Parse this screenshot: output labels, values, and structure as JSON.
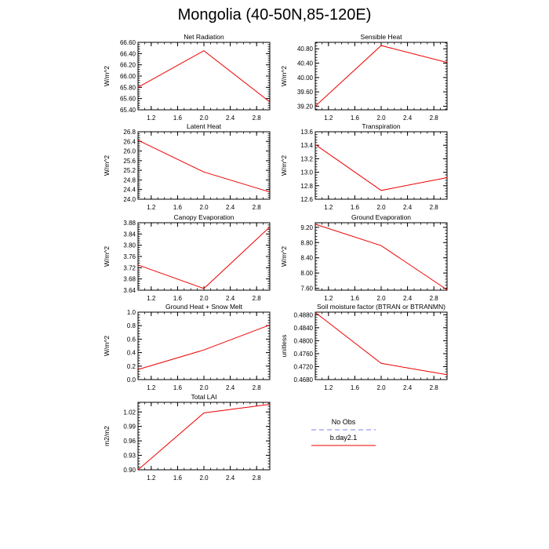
{
  "title": "Mongolia (40-50N,85-120E)",
  "colors": {
    "obs": "#9999ee",
    "model": "#ee0000",
    "axis": "#000000"
  },
  "legend": {
    "items": [
      {
        "label": "No Obs",
        "style": "dashed",
        "color": "#9999ee"
      },
      {
        "label": "b.day2.1",
        "style": "solid",
        "color": "#ee0000"
      }
    ]
  },
  "chart_data": [
    {
      "type": "line",
      "title": "Net Radiation",
      "ylabel": "W/m^2",
      "xlim": [
        1,
        3
      ],
      "xticks": [
        1.2,
        1.6,
        2.0,
        2.4,
        2.8
      ],
      "xtick_labels": [
        "1.2",
        "1.6",
        "2.0",
        "2.4",
        "2.8"
      ],
      "ylim": [
        65.4,
        66.6
      ],
      "yticks": [
        65.4,
        65.6,
        65.8,
        66.0,
        66.2,
        66.4,
        66.6
      ],
      "ytick_labels": [
        "65.40",
        "65.60",
        "65.80",
        "66.00",
        "66.20",
        "66.40",
        "66.60"
      ],
      "series": [
        {
          "name": "b.day2.1",
          "x": [
            1,
            2,
            3
          ],
          "values": [
            65.8,
            66.45,
            65.54
          ]
        }
      ]
    },
    {
      "type": "line",
      "title": "Sensible Heat",
      "ylabel": "W/m^2",
      "xlim": [
        1,
        3
      ],
      "xticks": [
        1.2,
        1.6,
        2.0,
        2.4,
        2.8
      ],
      "xtick_labels": [
        "1.2",
        "1.6",
        "2.0",
        "2.4",
        "2.8"
      ],
      "ylim": [
        39.1,
        40.98
      ],
      "yticks": [
        39.2,
        39.6,
        40.0,
        40.4,
        40.8
      ],
      "ytick_labels": [
        "39.20",
        "39.60",
        "40.00",
        "40.40",
        "40.80"
      ],
      "series": [
        {
          "name": "b.day2.1",
          "x": [
            1,
            2,
            3
          ],
          "values": [
            39.2,
            40.89,
            40.42
          ]
        }
      ]
    },
    {
      "type": "line",
      "title": "Latent Heat",
      "ylabel": "W/m^2",
      "xlim": [
        1,
        3
      ],
      "xticks": [
        1.2,
        1.6,
        2.0,
        2.4,
        2.8
      ],
      "xtick_labels": [
        "1.2",
        "1.6",
        "2.0",
        "2.4",
        "2.8"
      ],
      "ylim": [
        24.0,
        26.8
      ],
      "yticks": [
        24.0,
        24.4,
        24.8,
        25.2,
        25.6,
        26.0,
        26.4,
        26.8
      ],
      "ytick_labels": [
        "24.0",
        "24.4",
        "24.8",
        "25.2",
        "25.6",
        "26.0",
        "26.4",
        "26.8"
      ],
      "series": [
        {
          "name": "b.day2.1",
          "x": [
            1,
            2,
            3
          ],
          "values": [
            26.45,
            25.13,
            24.3
          ]
        }
      ]
    },
    {
      "type": "line",
      "title": "Transpiration",
      "ylabel": "W/m^2",
      "xlim": [
        1,
        3
      ],
      "xticks": [
        1.2,
        1.6,
        2.0,
        2.4,
        2.8
      ],
      "xtick_labels": [
        "1.2",
        "1.6",
        "2.0",
        "2.4",
        "2.8"
      ],
      "ylim": [
        12.6,
        13.6
      ],
      "yticks": [
        12.6,
        12.8,
        13.0,
        13.2,
        13.4,
        13.6
      ],
      "ytick_labels": [
        "12.6",
        "12.8",
        "13.0",
        "13.2",
        "13.4",
        "13.6"
      ],
      "series": [
        {
          "name": "b.day2.1",
          "x": [
            1,
            2,
            3
          ],
          "values": [
            13.41,
            12.73,
            12.92
          ]
        }
      ]
    },
    {
      "type": "line",
      "title": "Canopy Evaporation",
      "ylabel": "W/m^2",
      "xlim": [
        1,
        3
      ],
      "xticks": [
        1.2,
        1.6,
        2.0,
        2.4,
        2.8
      ],
      "xtick_labels": [
        "1.2",
        "1.6",
        "2.0",
        "2.4",
        "2.8"
      ],
      "ylim": [
        3.64,
        3.88
      ],
      "yticks": [
        3.64,
        3.68,
        3.72,
        3.76,
        3.8,
        3.84,
        3.88
      ],
      "ytick_labels": [
        "3.64",
        "3.68",
        "3.72",
        "3.76",
        "3.80",
        "3.84",
        "3.88"
      ],
      "series": [
        {
          "name": "b.day2.1",
          "x": [
            1,
            2,
            3
          ],
          "values": [
            3.73,
            3.646,
            3.865
          ]
        }
      ]
    },
    {
      "type": "line",
      "title": "Ground Evaporation",
      "ylabel": "W/m^2",
      "xlim": [
        1,
        3
      ],
      "xticks": [
        1.2,
        1.6,
        2.0,
        2.4,
        2.8
      ],
      "xtick_labels": [
        "1.2",
        "1.6",
        "2.0",
        "2.4",
        "2.8"
      ],
      "ylim": [
        7.55,
        9.32
      ],
      "yticks": [
        7.6,
        8.0,
        8.4,
        8.8,
        9.2
      ],
      "ytick_labels": [
        "7.60",
        "8.00",
        "8.40",
        "8.80",
        "9.20"
      ],
      "series": [
        {
          "name": "b.day2.1",
          "x": [
            1,
            2,
            3
          ],
          "values": [
            9.28,
            8.72,
            7.56
          ]
        }
      ]
    },
    {
      "type": "line",
      "title": "Ground Heat + Snow Melt",
      "ylabel": "W/m^2",
      "xlim": [
        1,
        3
      ],
      "xticks": [
        1.2,
        1.6,
        2.0,
        2.4,
        2.8
      ],
      "xtick_labels": [
        "1.2",
        "1.6",
        "2.0",
        "2.4",
        "2.8"
      ],
      "ylim": [
        0.0,
        1.0
      ],
      "yticks": [
        0.0,
        0.2,
        0.4,
        0.6,
        0.8,
        1.0
      ],
      "ytick_labels": [
        "0.0",
        "0.2",
        "0.4",
        "0.6",
        "0.8",
        "1.0"
      ],
      "series": [
        {
          "name": "b.day2.1",
          "x": [
            1,
            2,
            3
          ],
          "values": [
            0.15,
            0.44,
            0.81
          ]
        }
      ]
    },
    {
      "type": "line",
      "title": "Soil moisture factor (BTRAN or BTRANMN)",
      "ylabel": "unitless",
      "xlim": [
        1,
        3
      ],
      "xticks": [
        1.2,
        1.6,
        2.0,
        2.4,
        2.8
      ],
      "xtick_labels": [
        "1.2",
        "1.6",
        "2.0",
        "2.4",
        "2.8"
      ],
      "ylim": [
        0.468,
        0.4888
      ],
      "yticks": [
        0.468,
        0.472,
        0.476,
        0.48,
        0.484,
        0.488
      ],
      "ytick_labels": [
        "0.4680",
        "0.4720",
        "0.4760",
        "0.4800",
        "0.4840",
        "0.4880"
      ],
      "series": [
        {
          "name": "b.day2.1",
          "x": [
            1,
            2,
            3
          ],
          "values": [
            0.4887,
            0.473,
            0.4695
          ]
        }
      ]
    },
    {
      "type": "line",
      "title": "Total LAI",
      "ylabel": "m2/m2",
      "xlim": [
        1,
        3
      ],
      "xticks": [
        1.2,
        1.6,
        2.0,
        2.4,
        2.8
      ],
      "xtick_labels": [
        "1.2",
        "1.6",
        "2.0",
        "2.4",
        "2.8"
      ],
      "ylim": [
        0.9,
        1.04
      ],
      "yticks": [
        0.9,
        0.93,
        0.96,
        0.99,
        1.02
      ],
      "ytick_labels": [
        "0.90",
        "0.93",
        "0.96",
        "0.99",
        "1.02"
      ],
      "series": [
        {
          "name": "b.day2.1",
          "x": [
            1,
            2,
            3
          ],
          "values": [
            0.9,
            1.018,
            1.036
          ]
        }
      ]
    }
  ]
}
